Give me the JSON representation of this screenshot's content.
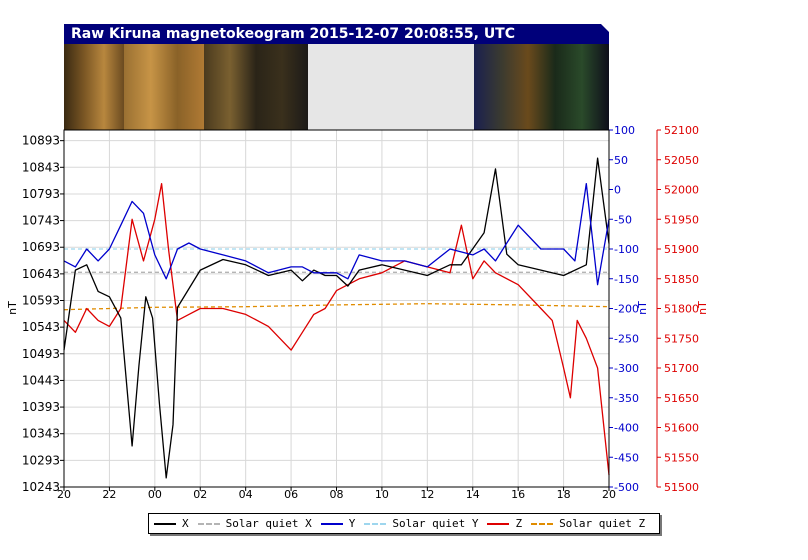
{
  "title": "Raw Kiruna magnetokeogram 2015-12-07 20:08:55, UTC",
  "colors": {
    "title_bg": "#00007a",
    "X": "#000000",
    "Y": "#0000cc",
    "Z": "#dd0000",
    "solar_quiet_X": "#b4b4b4",
    "solar_quiet_Y": "#9ed6ee",
    "solar_quiet_Z": "#e08c00",
    "keogram_gap": "#e6e6e6"
  },
  "chart_data": {
    "type": "line",
    "xlabel": "",
    "x_tick_labels": [
      "20",
      "22",
      "00",
      "02",
      "04",
      "06",
      "08",
      "10",
      "12",
      "14",
      "16",
      "18",
      "20"
    ],
    "x_ticks_hours_since_20UTC": [
      0,
      2,
      4,
      6,
      8,
      10,
      12,
      14,
      16,
      18,
      20,
      22,
      24
    ],
    "xlim_hours_since_20UTC": [
      0,
      24
    ],
    "grid": true,
    "axes": {
      "left": {
        "label": "nT",
        "color": "#000000",
        "ylim": [
          10243,
          10913
        ],
        "ticks": [
          10243,
          10293,
          10343,
          10393,
          10443,
          10493,
          10543,
          10593,
          10643,
          10693,
          10743,
          10793,
          10843,
          10893
        ]
      },
      "right1": {
        "label": "nT",
        "color": "#0000cc",
        "ylim": [
          -500,
          100
        ],
        "ticks": [
          -500,
          -450,
          -400,
          -350,
          -300,
          -250,
          -200,
          -150,
          -100,
          -50,
          0,
          50,
          100
        ]
      },
      "right2": {
        "label": "nT",
        "color": "#dd0000",
        "ylim": [
          51500,
          52100
        ],
        "ticks": [
          51500,
          51550,
          51600,
          51650,
          51700,
          51750,
          51800,
          51850,
          51900,
          51950,
          52000,
          52050,
          52100
        ]
      }
    },
    "series": [
      {
        "name": "X",
        "axis": "left",
        "style": "solid",
        "x": [
          0,
          0.5,
          1,
          1.5,
          2,
          2.5,
          3,
          3.3,
          3.6,
          3.9,
          4.2,
          4.5,
          4.8,
          5,
          6,
          7,
          8,
          9,
          10,
          10.5,
          11,
          11.5,
          12,
          12.5,
          13,
          14,
          15,
          16,
          16.5,
          17,
          17.5,
          18,
          18.5,
          19,
          19.5,
          20,
          21,
          22,
          23,
          23.5,
          24
        ],
        "y": [
          10500,
          10650,
          10660,
          10610,
          10600,
          10560,
          10320,
          10470,
          10600,
          10560,
          10400,
          10260,
          10360,
          10580,
          10650,
          10670,
          10660,
          10640,
          10650,
          10630,
          10650,
          10640,
          10640,
          10620,
          10650,
          10660,
          10650,
          10640,
          10650,
          10660,
          10660,
          10690,
          10720,
          10840,
          10680,
          10660,
          10650,
          10640,
          10660,
          10860,
          10700
        ]
      },
      {
        "name": "Solar quiet X",
        "axis": "left",
        "style": "dashed",
        "x": [
          0,
          24
        ],
        "y": [
          10646,
          10646
        ]
      },
      {
        "name": "Y",
        "axis": "right1",
        "style": "solid",
        "x": [
          0,
          0.5,
          1,
          1.5,
          2,
          2.5,
          3,
          3.5,
          4,
          4.5,
          5,
          5.5,
          6,
          7,
          8,
          9,
          10,
          10.5,
          11,
          11.5,
          12,
          12.5,
          13,
          14,
          15,
          16,
          17,
          18,
          18.5,
          19,
          19.5,
          20,
          21,
          22,
          22.5,
          23,
          23.5,
          24
        ],
        "y": [
          -120,
          -130,
          -100,
          -120,
          -100,
          -60,
          -20,
          -40,
          -110,
          -150,
          -100,
          -90,
          -100,
          -110,
          -120,
          -140,
          -130,
          -130,
          -140,
          -140,
          -140,
          -150,
          -110,
          -120,
          -120,
          -130,
          -100,
          -110,
          -100,
          -120,
          -90,
          -60,
          -100,
          -100,
          -120,
          10,
          -160,
          -50
        ]
      },
      {
        "name": "Solar quiet Y",
        "axis": "right1",
        "style": "dashed",
        "x": [
          0,
          24
        ],
        "y": [
          -100,
          -100
        ]
      },
      {
        "name": "Z",
        "axis": "right2",
        "style": "solid",
        "x": [
          0,
          0.5,
          1,
          1.5,
          2,
          2.5,
          3,
          3.5,
          4,
          4.3,
          4.6,
          5,
          5.5,
          6,
          7,
          8,
          9,
          10,
          10.5,
          11,
          11.5,
          12,
          12.5,
          13,
          14,
          15,
          16,
          17,
          17.5,
          18,
          18.5,
          19,
          20,
          21,
          21.5,
          22,
          22.3,
          22.6,
          23,
          23.5,
          24
        ],
        "y": [
          51780,
          51760,
          51800,
          51780,
          51770,
          51800,
          51950,
          51880,
          51950,
          52010,
          51900,
          51780,
          51790,
          51800,
          51800,
          51790,
          51770,
          51730,
          51760,
          51790,
          51800,
          51830,
          51840,
          51850,
          51860,
          51880,
          51870,
          51860,
          51940,
          51850,
          51880,
          51860,
          51840,
          51800,
          51780,
          51700,
          51650,
          51780,
          51750,
          51700,
          51520
        ]
      },
      {
        "name": "Solar quiet Z",
        "axis": "right2",
        "style": "dashed",
        "x": [
          0,
          4,
          8,
          12,
          16,
          20,
          24
        ],
        "y": [
          51798,
          51802,
          51803,
          51806,
          51808,
          51806,
          51803
        ]
      }
    ]
  },
  "legend": [
    {
      "label": "X",
      "key": "X",
      "style": "solid"
    },
    {
      "label": "Solar quiet X",
      "key": "solar_quiet_X",
      "style": "dashed"
    },
    {
      "label": "Y",
      "key": "Y",
      "style": "solid"
    },
    {
      "label": "Solar quiet Y",
      "key": "solar_quiet_Y",
      "style": "dashed"
    },
    {
      "label": "Z",
      "key": "Z",
      "style": "solid"
    },
    {
      "label": "Solar quiet Z",
      "key": "solar_quiet_Z",
      "style": "dashed"
    }
  ]
}
